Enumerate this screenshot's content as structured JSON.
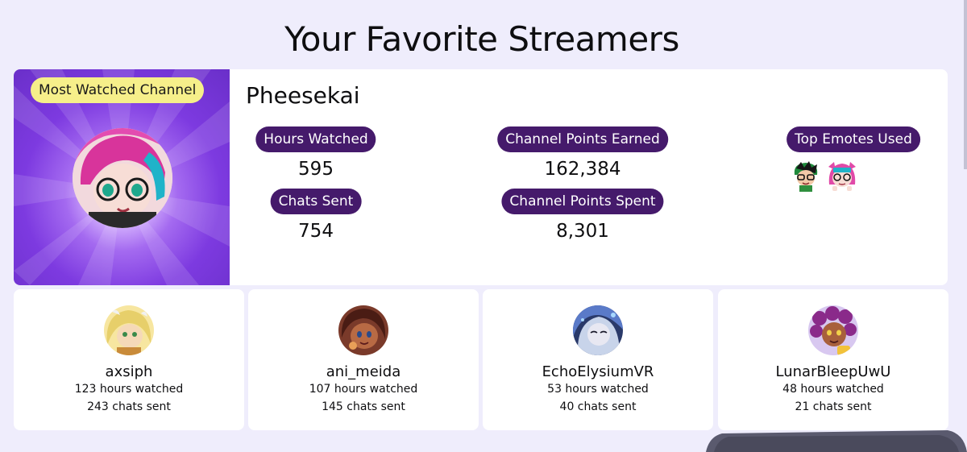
{
  "page": {
    "title": "Your Favorite Streamers"
  },
  "featured": {
    "badge": "Most Watched Channel",
    "name": "Pheesekai",
    "stats": {
      "hours_watched_label": "Hours Watched",
      "hours_watched": "595",
      "chats_sent_label": "Chats Sent",
      "chats_sent": "754",
      "points_earned_label": "Channel Points Earned",
      "points_earned": "162,384",
      "points_spent_label": "Channel Points Spent",
      "points_spent": "8,301",
      "top_emotes_label": "Top Emotes Used"
    },
    "emotes": [
      "green-haired-emote-icon",
      "pink-haired-emote-icon"
    ]
  },
  "streamers": [
    {
      "name": "axsiph",
      "hours": "123 hours watched",
      "chats": "243 chats sent"
    },
    {
      "name": "ani_meida",
      "hours": "107 hours watched",
      "chats": "145 chats sent"
    },
    {
      "name": "EchoElysiumVR",
      "hours": "53 hours watched",
      "chats": "40 chats sent"
    },
    {
      "name": "LunarBleepUwU",
      "hours": "48 hours watched",
      "chats": "21 chats sent"
    }
  ],
  "colors": {
    "background": "#efedfc",
    "pill": "#451a6b",
    "badge": "#f6ef8a",
    "featured_art": "#7d3ae0"
  }
}
